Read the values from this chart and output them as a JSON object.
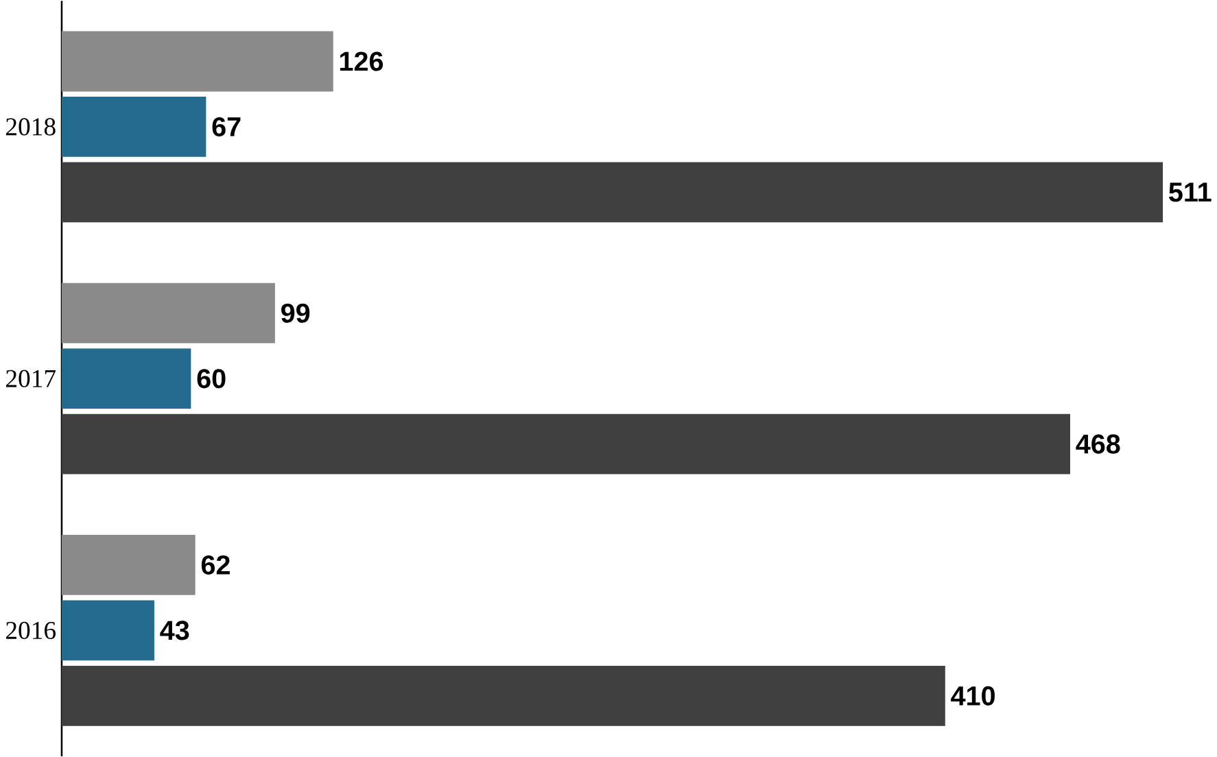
{
  "chart_data": {
    "type": "bar",
    "orientation": "horizontal",
    "categories": [
      "2018",
      "2017",
      "2016"
    ],
    "series": [
      {
        "color": "#8a8a8a",
        "values": [
          126,
          99,
          62
        ]
      },
      {
        "color": "#246b8f",
        "values": [
          67,
          60,
          43
        ]
      },
      {
        "color": "#404040",
        "values": [
          511,
          468,
          410
        ]
      }
    ],
    "data_labels": true
  }
}
